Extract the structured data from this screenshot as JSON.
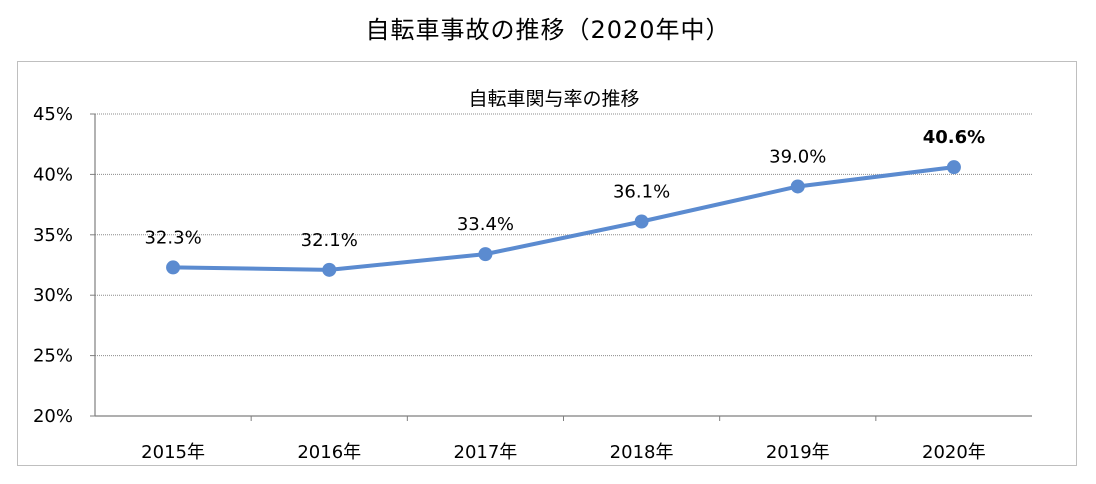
{
  "title": "自転車事故の推移（2020年中）",
  "chart_data": {
    "type": "line",
    "title": "自転車関与率の推移",
    "categories": [
      "2015年",
      "2016年",
      "2017年",
      "2018年",
      "2019年",
      "2020年"
    ],
    "series": [
      {
        "values": [
          32.3,
          32.1,
          33.4,
          36.1,
          39.0,
          40.6
        ],
        "labels": [
          "32.3%",
          "32.1%",
          "33.4%",
          "36.1%",
          "39.0%",
          "40.6%"
        ],
        "color": "#5b8bd0"
      }
    ],
    "ylim": [
      20,
      45
    ],
    "yticks": [
      "20%",
      "25%",
      "30%",
      "35%",
      "40%",
      "45%"
    ],
    "grid": true,
    "highlight_last_label": true
  }
}
